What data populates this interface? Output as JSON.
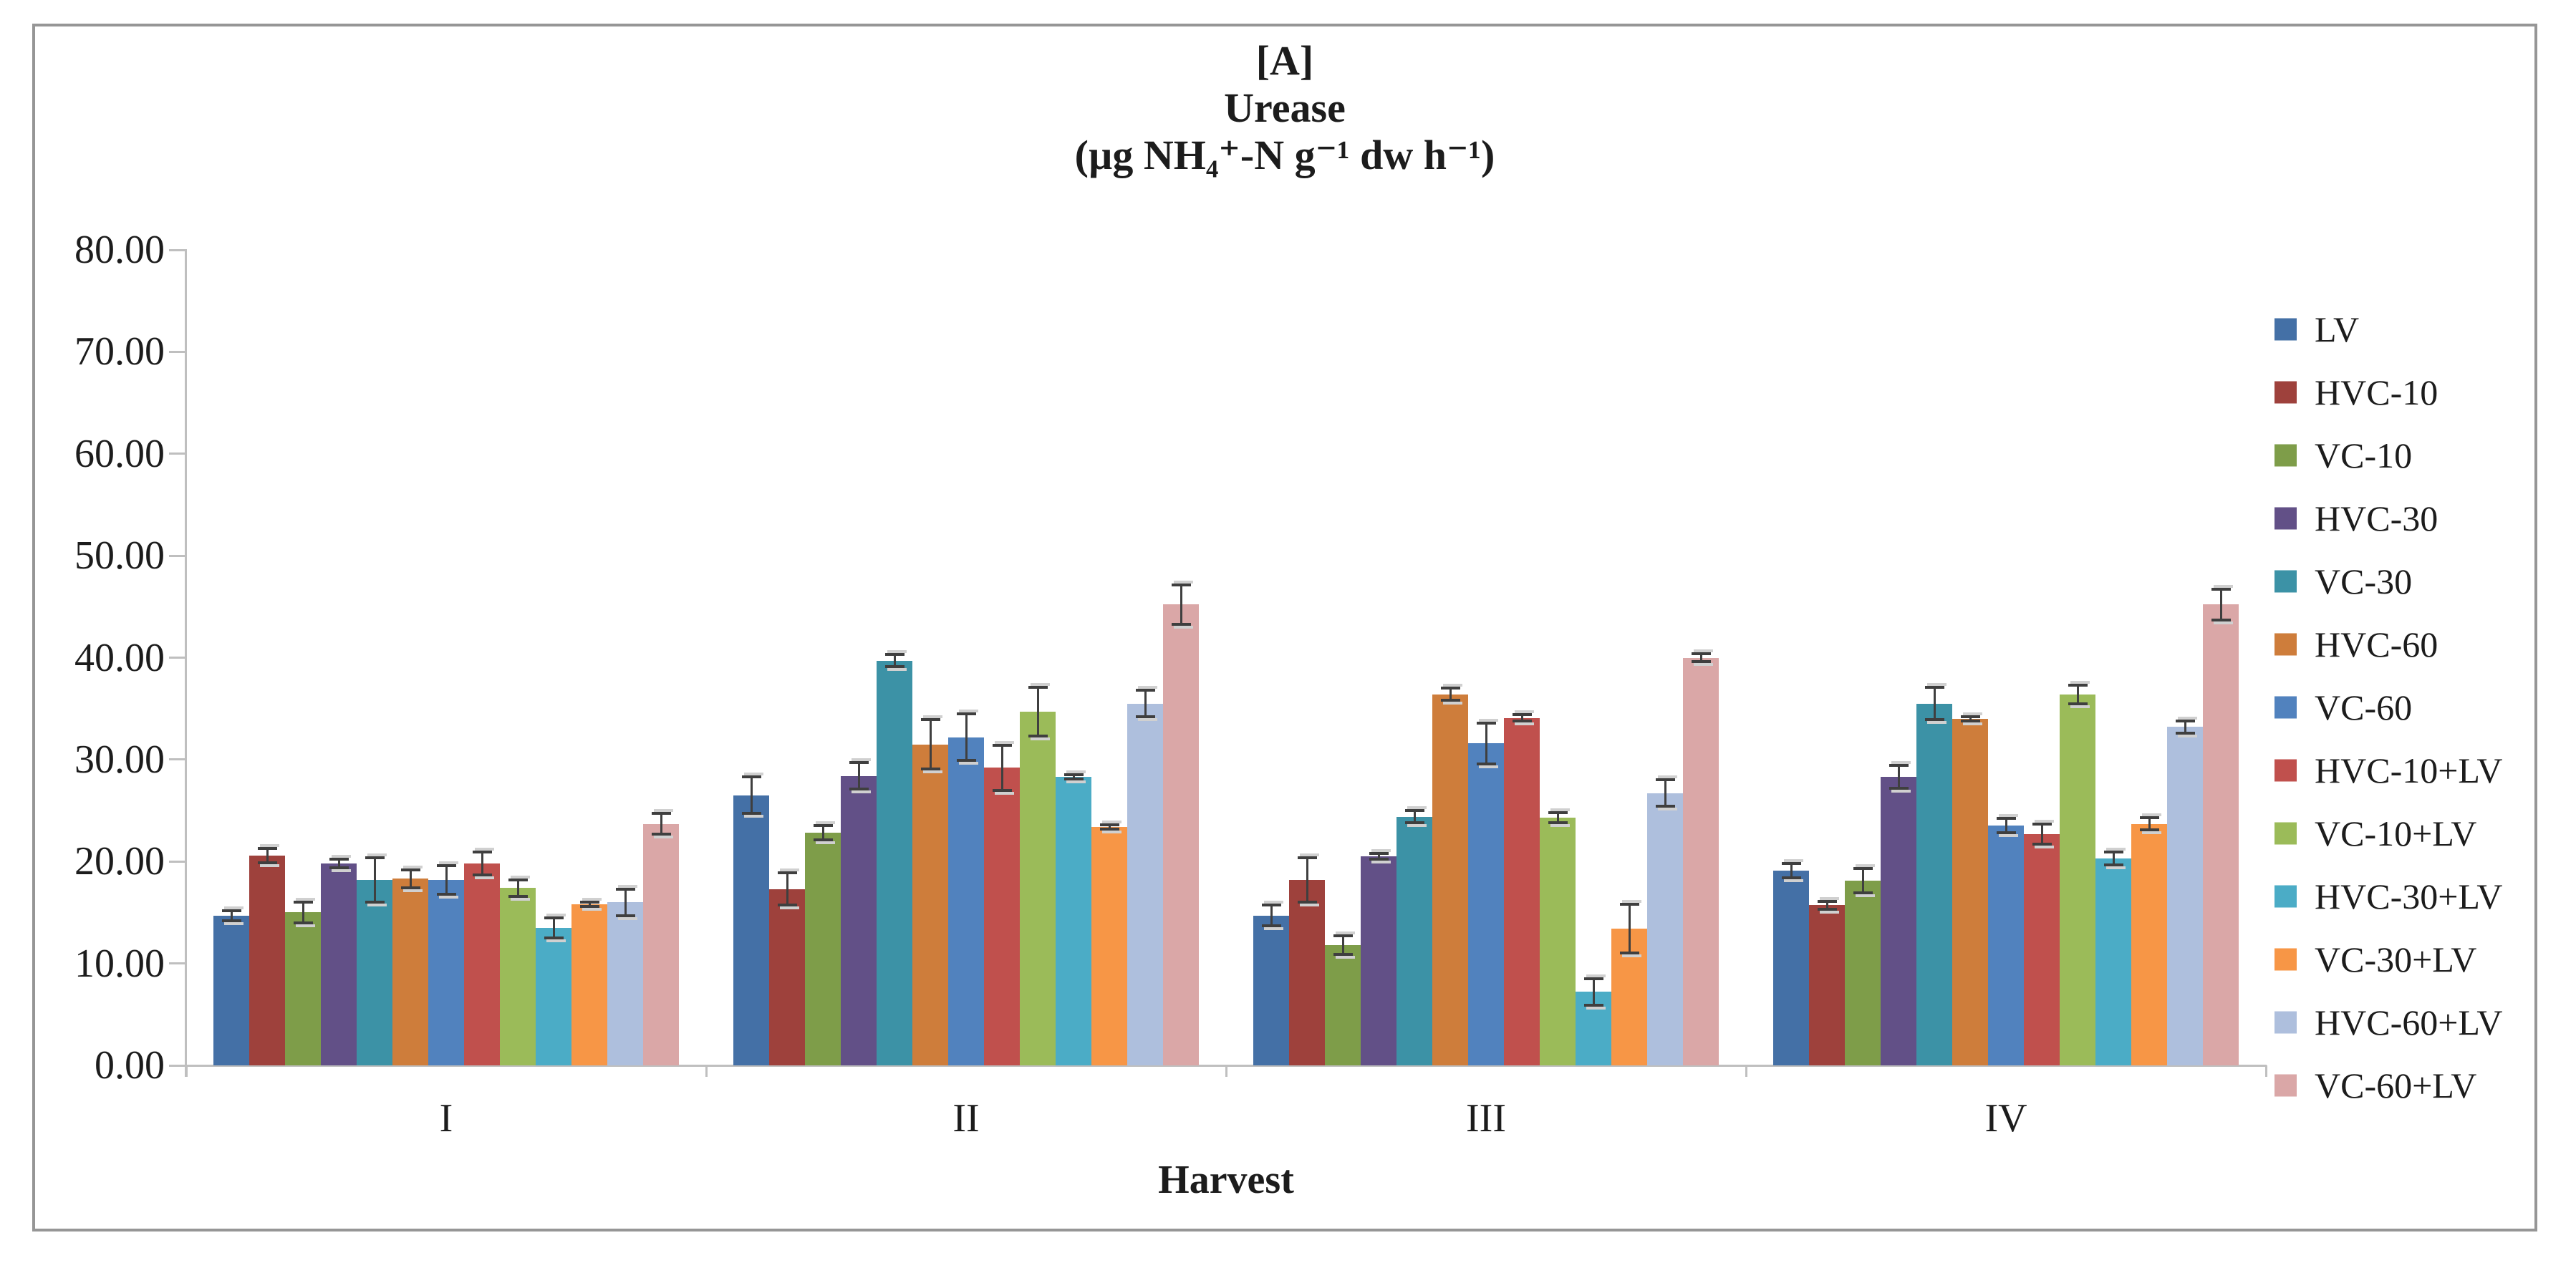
{
  "chart_data": {
    "type": "bar",
    "title_lines": [
      "[A]",
      "Urease",
      "(µg NH₄⁺-N g⁻¹ dw h⁻¹)"
    ],
    "xlabel": "Harvest",
    "categories": [
      "I",
      "II",
      "III",
      "IV"
    ],
    "ylim": [
      0,
      80
    ],
    "ytick_step": 10,
    "ytick_labels": [
      "0.00",
      "10.00",
      "20.00",
      "30.00",
      "40.00",
      "50.00",
      "60.00",
      "70.00",
      "80.00"
    ],
    "grid": "off",
    "legend_position": "right",
    "error_bars": true,
    "axis_color": "#bfbfbf",
    "frame_color": "#969696",
    "series": [
      {
        "name": "LV",
        "color": "#4470A6",
        "values": [
          14.7,
          26.5,
          14.7,
          19.1
        ],
        "errors": [
          0.5,
          1.8,
          1.0,
          0.7
        ]
      },
      {
        "name": "HVC-10",
        "color": "#9E413C",
        "values": [
          20.6,
          17.3,
          18.2,
          15.7
        ],
        "errors": [
          0.7,
          1.6,
          2.2,
          0.4
        ]
      },
      {
        "name": "VC-10",
        "color": "#7E9D49",
        "values": [
          15.0,
          22.8,
          11.8,
          18.1
        ],
        "errors": [
          1.0,
          0.7,
          0.9,
          1.2
        ]
      },
      {
        "name": "HVC-30",
        "color": "#625087",
        "values": [
          19.8,
          28.4,
          20.5,
          28.3
        ],
        "errors": [
          0.4,
          1.3,
          0.3,
          1.1
        ]
      },
      {
        "name": "VC-30",
        "color": "#3C92A6",
        "values": [
          18.2,
          39.7,
          24.4,
          35.5
        ],
        "errors": [
          2.2,
          0.6,
          0.6,
          1.6
        ]
      },
      {
        "name": "HVC-60",
        "color": "#CE7D3B",
        "values": [
          18.3,
          31.5,
          36.4,
          34.0
        ],
        "errors": [
          0.9,
          2.4,
          0.6,
          0.2
        ]
      },
      {
        "name": "VC-60",
        "color": "#5182BE",
        "values": [
          18.2,
          32.2,
          31.6,
          23.5
        ],
        "errors": [
          1.4,
          2.3,
          2.0,
          0.7
        ]
      },
      {
        "name": "HVC-10+LV",
        "color": "#C0504D",
        "values": [
          19.8,
          29.2,
          34.1,
          22.7
        ],
        "errors": [
          1.1,
          2.2,
          0.3,
          1.0
        ]
      },
      {
        "name": "VC-10+LV",
        "color": "#9BBB59",
        "values": [
          17.4,
          34.7,
          24.3,
          36.4
        ],
        "errors": [
          0.8,
          2.4,
          0.5,
          0.9
        ]
      },
      {
        "name": "HVC-30+LV",
        "color": "#4BACC6",
        "values": [
          13.5,
          28.3,
          7.2,
          20.3
        ],
        "errors": [
          1.0,
          0.2,
          1.3,
          0.6
        ]
      },
      {
        "name": "VC-30+LV",
        "color": "#F79646",
        "values": [
          15.8,
          23.4,
          13.4,
          23.7
        ],
        "errors": [
          0.2,
          0.2,
          2.4,
          0.6
        ]
      },
      {
        "name": "HVC-60+LV",
        "color": "#AEBFDD",
        "values": [
          16.0,
          35.5,
          26.7,
          33.2
        ],
        "errors": [
          1.3,
          1.3,
          1.3,
          0.6
        ]
      },
      {
        "name": "VC-60+LV",
        "color": "#DAA7A7",
        "values": [
          23.7,
          45.2,
          40.0,
          45.2
        ],
        "errors": [
          1.0,
          1.9,
          0.4,
          1.5
        ]
      }
    ]
  }
}
